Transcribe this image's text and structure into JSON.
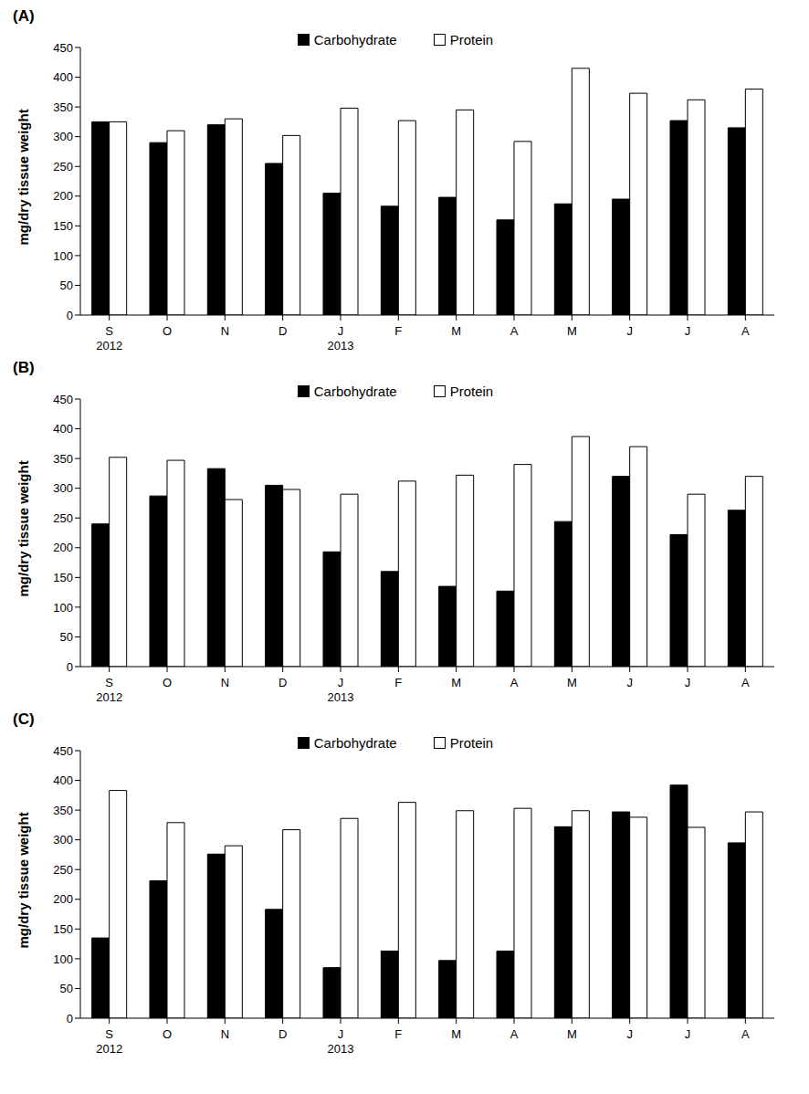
{
  "chart_data": [
    {
      "type": "bar",
      "title": "(A)",
      "y_label": "mg/dry tissue weight",
      "categories": [
        "S",
        "O",
        "N",
        "D",
        "J",
        "F",
        "M",
        "A",
        "M",
        "J",
        "J",
        "A"
      ],
      "year_labels": [
        "2012",
        null,
        null,
        null,
        "2013",
        null,
        null,
        null,
        null,
        null,
        null,
        null
      ],
      "series": [
        {
          "name": "Carbohydrate",
          "color": "#000000",
          "values": [
            325,
            290,
            320,
            255,
            205,
            183,
            198,
            160,
            187,
            195,
            327,
            315
          ]
        },
        {
          "name": "Protein",
          "color": "#ffffff",
          "values": [
            325,
            310,
            330,
            302,
            348,
            327,
            345,
            292,
            415,
            373,
            362,
            380
          ]
        }
      ],
      "ylim": [
        0,
        450
      ],
      "yticks": [
        0,
        50,
        100,
        150,
        200,
        250,
        300,
        350,
        400,
        450
      ],
      "grid": false,
      "legend": "top"
    },
    {
      "type": "bar",
      "title": "(B)",
      "y_label": "mg/dry tissue weight",
      "categories": [
        "S",
        "O",
        "N",
        "D",
        "J",
        "F",
        "M",
        "A",
        "M",
        "J",
        "J",
        "A"
      ],
      "year_labels": [
        "2012",
        null,
        null,
        null,
        "2013",
        null,
        null,
        null,
        null,
        null,
        null,
        null
      ],
      "series": [
        {
          "name": "Carbohydrate",
          "color": "#000000",
          "values": [
            240,
            287,
            333,
            305,
            193,
            160,
            135,
            127,
            244,
            320,
            222,
            263
          ]
        },
        {
          "name": "Protein",
          "color": "#ffffff",
          "values": [
            352,
            347,
            281,
            298,
            290,
            312,
            322,
            340,
            387,
            370,
            290,
            320
          ]
        }
      ],
      "ylim": [
        0,
        450
      ],
      "yticks": [
        0,
        50,
        100,
        150,
        200,
        250,
        300,
        350,
        400,
        450
      ],
      "grid": false,
      "legend": "top"
    },
    {
      "type": "bar",
      "title": "(C)",
      "y_label": "mg/dry tissue weight",
      "categories": [
        "S",
        "O",
        "N",
        "D",
        "J",
        "F",
        "M",
        "A",
        "M",
        "J",
        "J",
        "A"
      ],
      "year_labels": [
        "2012",
        null,
        null,
        null,
        "2013",
        null,
        null,
        null,
        null,
        null,
        null,
        null
      ],
      "series": [
        {
          "name": "Carbohydrate",
          "color": "#000000",
          "values": [
            135,
            231,
            276,
            183,
            85,
            113,
            97,
            113,
            322,
            347,
            392,
            295
          ]
        },
        {
          "name": "Protein",
          "color": "#ffffff",
          "values": [
            383,
            329,
            290,
            317,
            336,
            363,
            349,
            353,
            349,
            338,
            321,
            347
          ]
        }
      ],
      "ylim": [
        0,
        450
      ],
      "yticks": [
        0,
        50,
        100,
        150,
        200,
        250,
        300,
        350,
        400,
        450
      ],
      "grid": false,
      "legend": "top"
    }
  ]
}
